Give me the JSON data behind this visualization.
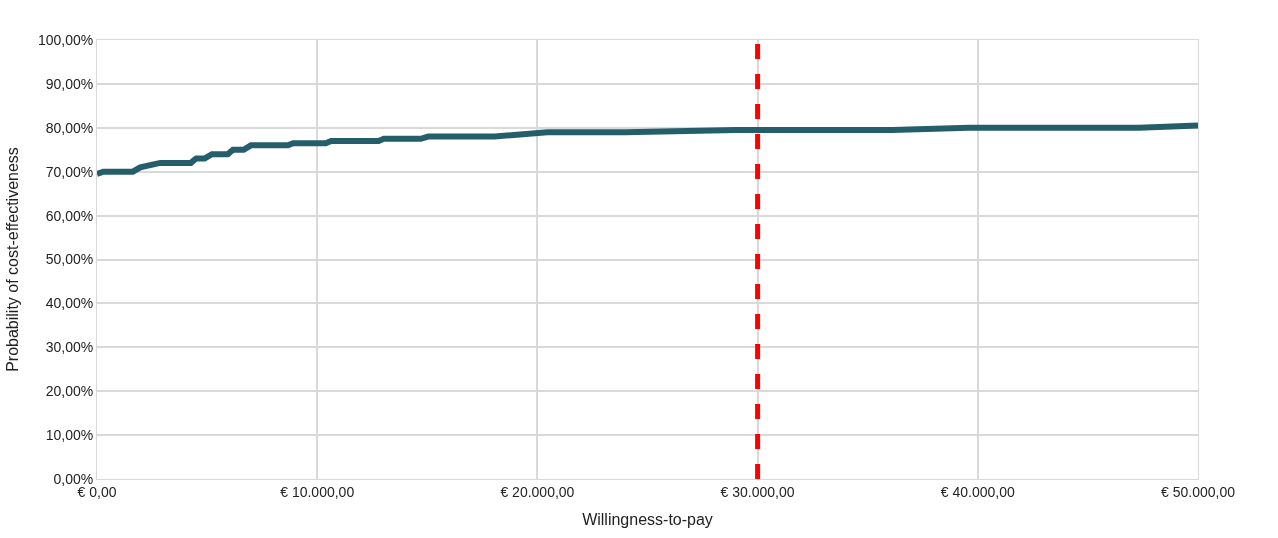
{
  "chart_data": {
    "type": "line",
    "xlabel": "Willingness-to-pay",
    "ylabel": "Probability of cost-effectiveness",
    "x": [
      0,
      287,
      1628,
      1964,
      2874,
      4262,
      4502,
      4885,
      5220,
      5939,
      6178,
      6657,
      6992,
      8669,
      8908,
      10393,
      10632,
      12787,
      13027,
      14703,
      15038,
      18056,
      20450,
      23994,
      29023,
      36111,
      39607,
      47318,
      50000
    ],
    "series": [
      {
        "color": "#255e6b",
        "values": [
          69.5,
          70,
          70,
          71,
          72,
          72,
          73,
          73,
          74,
          74,
          75,
          75,
          76,
          76,
          76.5,
          76.5,
          77,
          77,
          77.5,
          77.5,
          78,
          78,
          79,
          79,
          79.5,
          79.5,
          80,
          80,
          80.5
        ]
      }
    ],
    "xlim": [
      0,
      50000
    ],
    "xticks": [
      {
        "value": 0,
        "label": "€ 0,00"
      },
      {
        "value": 10000,
        "label": "€ 10.000,00"
      },
      {
        "value": 20000,
        "label": "€ 20.000,00"
      },
      {
        "value": 30000,
        "label": "€ 30.000,00"
      },
      {
        "value": 40000,
        "label": "€ 40.000,00"
      },
      {
        "value": 50000,
        "label": "€ 50.000,00"
      }
    ],
    "ylim": [
      0,
      100
    ],
    "yticks": [
      {
        "value": 0,
        "label": "0,00%"
      },
      {
        "value": 10,
        "label": "10,00%"
      },
      {
        "value": 20,
        "label": "20,00%"
      },
      {
        "value": 30,
        "label": "30,00%"
      },
      {
        "value": 40,
        "label": "40,00%"
      },
      {
        "value": 50,
        "label": "50,00%"
      },
      {
        "value": 60,
        "label": "60,00%"
      },
      {
        "value": 70,
        "label": "70,00%"
      },
      {
        "value": 80,
        "label": "80,00%"
      },
      {
        "value": 90,
        "label": "90,00%"
      },
      {
        "value": 100,
        "label": "100,00%"
      }
    ],
    "ref_lines": [
      {
        "axis": "x",
        "value": 30000,
        "color": "#ff0000",
        "line_style": "dashed"
      }
    ],
    "grid": true,
    "marker": "none",
    "line_style": "solid"
  }
}
